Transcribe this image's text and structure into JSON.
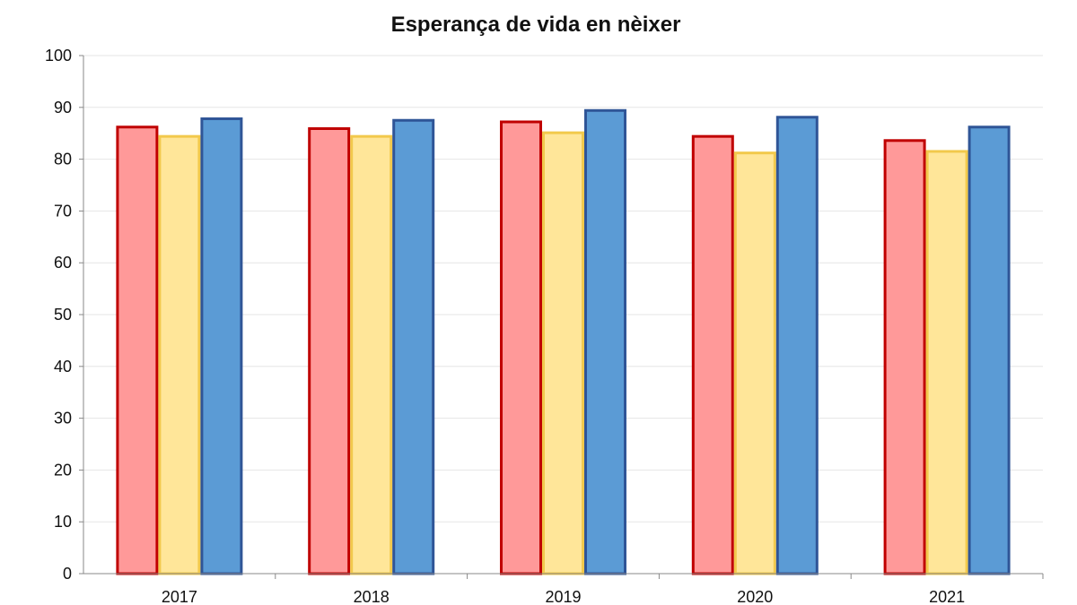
{
  "chart_data": {
    "type": "bar",
    "title": "Esperança de vida en nèixer",
    "categories": [
      "2017",
      "2018",
      "2019",
      "2020",
      "2021"
    ],
    "series": [
      {
        "values": [
          86.2,
          85.9,
          87.2,
          84.4,
          83.6
        ],
        "fill": "#FF9999",
        "stroke": "#C00000"
      },
      {
        "values": [
          84.4,
          84.4,
          85.1,
          81.2,
          81.5
        ],
        "fill": "#FFE699",
        "stroke": "#F2C94C"
      },
      {
        "values": [
          87.8,
          87.5,
          89.4,
          88.1,
          86.2
        ],
        "fill": "#5B9BD5",
        "stroke": "#2F5597"
      }
    ],
    "ylim": [
      0,
      100
    ],
    "yticks": [
      "0",
      "10",
      "20",
      "30",
      "40",
      "50",
      "60",
      "70",
      "80",
      "90",
      "100"
    ],
    "grid": true,
    "xlabel": "",
    "ylabel": ""
  }
}
